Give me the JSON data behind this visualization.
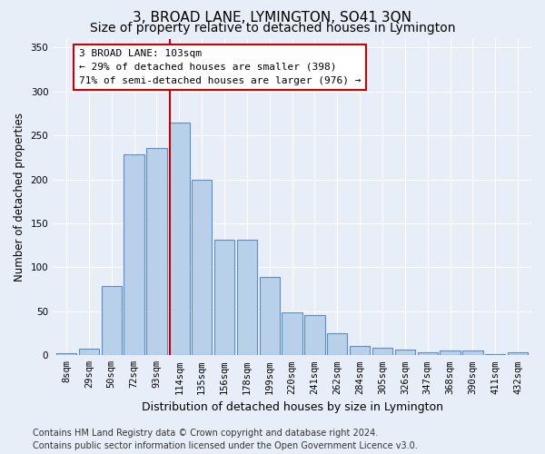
{
  "title": "3, BROAD LANE, LYMINGTON, SO41 3QN",
  "subtitle": "Size of property relative to detached houses in Lymington",
  "xlabel": "Distribution of detached houses by size in Lymington",
  "ylabel": "Number of detached properties",
  "footer_line1": "Contains HM Land Registry data © Crown copyright and database right 2024.",
  "footer_line2": "Contains public sector information licensed under the Open Government Licence v3.0.",
  "bar_labels": [
    "8sqm",
    "29sqm",
    "50sqm",
    "72sqm",
    "93sqm",
    "114sqm",
    "135sqm",
    "156sqm",
    "178sqm",
    "199sqm",
    "220sqm",
    "241sqm",
    "262sqm",
    "284sqm",
    "305sqm",
    "326sqm",
    "347sqm",
    "368sqm",
    "390sqm",
    "411sqm",
    "432sqm"
  ],
  "bar_values": [
    2,
    8,
    79,
    228,
    236,
    265,
    200,
    131,
    131,
    89,
    49,
    46,
    25,
    11,
    9,
    6,
    3,
    5,
    5,
    1,
    3
  ],
  "bar_color": "#b8d0ea",
  "bar_edge_color": "#5b8ec4",
  "bg_color": "#e8eef8",
  "grid_color": "#ffffff",
  "annotation_label": "3 BROAD LANE: 103sqm",
  "annotation_line1": "← 29% of detached houses are smaller (398)",
  "annotation_line2": "71% of semi-detached houses are larger (976) →",
  "annotation_box_color": "#ffffff",
  "annotation_box_edge": "#cc0000",
  "ylim": [
    0,
    360
  ],
  "yticks": [
    0,
    50,
    100,
    150,
    200,
    250,
    300,
    350
  ],
  "vline_color": "#cc0000",
  "vline_x_idx": 4.57,
  "title_fontsize": 11,
  "subtitle_fontsize": 10,
  "xlabel_fontsize": 9,
  "ylabel_fontsize": 8.5,
  "tick_fontsize": 7.5,
  "annotation_fontsize": 8,
  "footer_fontsize": 7
}
